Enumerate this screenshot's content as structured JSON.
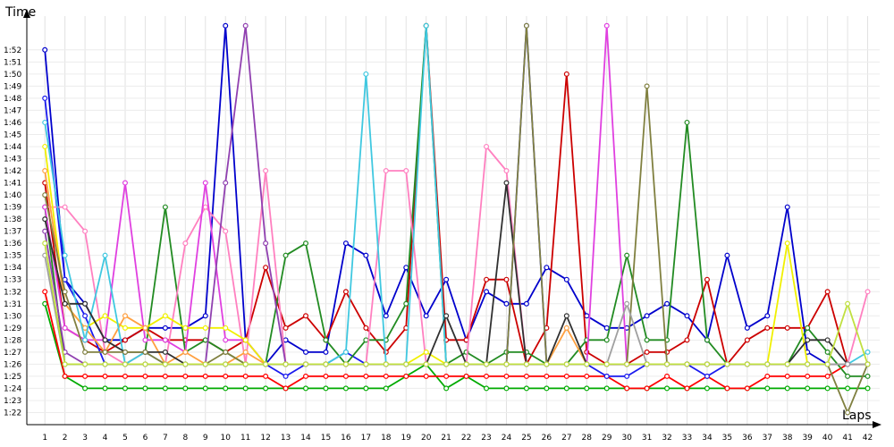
{
  "chart_data": {
    "type": "line",
    "xlabel": "Laps",
    "ylabel": "Time",
    "x": [
      1,
      2,
      3,
      4,
      5,
      6,
      7,
      8,
      9,
      10,
      11,
      12,
      13,
      14,
      15,
      16,
      17,
      18,
      19,
      20,
      21,
      22,
      23,
      24,
      25,
      26,
      27,
      28,
      29,
      30,
      31,
      32,
      33,
      34,
      35,
      36,
      37,
      38,
      39,
      40,
      41,
      42
    ],
    "xlim": [
      0.1,
      42.6
    ],
    "ylim": [
      81,
      114.5
    ],
    "y_ticks": [
      82,
      83,
      84,
      85,
      86,
      87,
      88,
      89,
      90,
      91,
      92,
      93,
      94,
      95,
      96,
      97,
      98,
      99,
      100,
      101,
      102,
      103,
      104,
      105,
      106,
      107,
      108,
      109,
      110,
      111,
      112
    ],
    "y_tick_labels": [
      "1:22",
      "1:23",
      "1:24",
      "1:25",
      "1:26",
      "1:27",
      "1:28",
      "1:29",
      "1:30",
      "1:31",
      "1:32",
      "1:33",
      "1:34",
      "1:35",
      "1:36",
      "1:37",
      "1:38",
      "1:39",
      "1:40",
      "1:41",
      "1:42",
      "1:43",
      "1:44",
      "1:45",
      "1:46",
      "1:47",
      "1:48",
      "1:49",
      "1:50",
      "1:51",
      "1:52"
    ],
    "grid": true,
    "series": [
      {
        "color": "#0000cc",
        "values": [
          112,
          93,
          91,
          88,
          88,
          89,
          89,
          89,
          90,
          114,
          88,
          86,
          88,
          87,
          87,
          96,
          95,
          90,
          94,
          90,
          93,
          88,
          92,
          91,
          91,
          94,
          93,
          90,
          89,
          89,
          90,
          91,
          90,
          88,
          95,
          89,
          90,
          99,
          87,
          86,
          86,
          86
        ]
      },
      {
        "color": "#00aa00",
        "values": [
          91,
          85,
          84,
          84,
          84,
          84,
          84,
          84,
          84,
          84,
          84,
          84,
          84,
          84,
          84,
          84,
          84,
          84,
          85,
          86,
          84,
          85,
          84,
          84,
          84,
          84,
          84,
          84,
          84,
          84,
          84,
          84,
          84,
          84,
          84,
          84,
          84,
          84,
          84,
          84,
          84,
          84
        ]
      },
      {
        "color": "#ff0000",
        "values": [
          92,
          85,
          85,
          85,
          85,
          85,
          85,
          85,
          85,
          85,
          85,
          85,
          84,
          85,
          85,
          85,
          85,
          85,
          85,
          85,
          85,
          85,
          85,
          85,
          85,
          85,
          85,
          85,
          85,
          84,
          84,
          85,
          84,
          85,
          84,
          84,
          85,
          85,
          85,
          85,
          86,
          86
        ]
      },
      {
        "color": "#cc0000",
        "values": [
          101,
          89,
          88,
          87,
          88,
          89,
          88,
          88,
          88,
          87,
          88,
          94,
          89,
          90,
          88,
          92,
          89,
          87,
          89,
          114,
          88,
          88,
          93,
          93,
          86,
          89,
          110,
          87,
          86,
          86,
          87,
          87,
          88,
          93,
          86,
          88,
          89,
          89,
          89,
          92,
          86,
          86
        ]
      },
      {
        "color": "#1a1aee",
        "values": [
          108,
          93,
          90,
          86,
          86,
          86,
          86,
          86,
          86,
          86,
          86,
          86,
          85,
          86,
          86,
          87,
          86,
          86,
          86,
          86,
          86,
          86,
          86,
          86,
          114,
          86,
          86,
          86,
          85,
          85,
          86,
          86,
          86,
          85,
          86,
          86,
          86,
          86,
          86,
          86,
          86,
          86
        ]
      },
      {
        "color": "#228b22",
        "values": [
          99,
          86,
          86,
          86,
          86,
          87,
          99,
          87,
          88,
          87,
          86,
          86,
          95,
          96,
          88,
          86,
          88,
          88,
          91,
          114,
          86,
          87,
          86,
          87,
          87,
          86,
          86,
          88,
          88,
          95,
          88,
          88,
          106,
          88,
          86,
          86,
          86,
          86,
          89,
          87,
          85,
          85
        ]
      },
      {
        "color": "#ff80c0",
        "values": [
          99,
          99,
          97,
          87,
          86,
          87,
          86,
          96,
          99,
          97,
          86,
          102,
          86,
          86,
          86,
          86,
          86,
          102,
          102,
          86,
          86,
          86,
          104,
          102,
          86,
          86,
          86,
          86,
          86,
          86,
          86,
          86,
          86,
          86,
          86,
          86,
          86,
          86,
          86,
          86,
          86,
          92
        ]
      },
      {
        "color": "#e040e0",
        "values": [
          99,
          89,
          88,
          88,
          101,
          88,
          88,
          87,
          101,
          88,
          88,
          86,
          86,
          86,
          86,
          86,
          86,
          86,
          86,
          86,
          86,
          86,
          86,
          86,
          86,
          86,
          86,
          86,
          114,
          86,
          86,
          86,
          86,
          86,
          86,
          86,
          86,
          86,
          86,
          86,
          86,
          86
        ]
      },
      {
        "color": "#f0f000",
        "values": [
          104,
          91,
          89,
          90,
          89,
          89,
          90,
          89,
          89,
          89,
          88,
          86,
          86,
          86,
          86,
          86,
          86,
          86,
          86,
          87,
          86,
          86,
          86,
          86,
          86,
          86,
          86,
          86,
          86,
          86,
          86,
          86,
          86,
          86,
          86,
          86,
          86,
          96,
          86,
          86,
          86,
          86
        ]
      },
      {
        "color": "#ffa040",
        "values": [
          102,
          91,
          89,
          87,
          90,
          89,
          86,
          87,
          86,
          86,
          87,
          86,
          86,
          86,
          86,
          86,
          86,
          86,
          86,
          86,
          86,
          86,
          86,
          86,
          86,
          86,
          89,
          86,
          86,
          86,
          86,
          86,
          86,
          86,
          86,
          86,
          86,
          86,
          86,
          86,
          86,
          86
        ]
      },
      {
        "color": "#40c8e0",
        "values": [
          106,
          95,
          88,
          95,
          86,
          87,
          86,
          86,
          86,
          86,
          86,
          86,
          86,
          86,
          86,
          87,
          110,
          86,
          86,
          114,
          86,
          86,
          86,
          86,
          86,
          86,
          86,
          86,
          86,
          86,
          86,
          86,
          86,
          86,
          86,
          86,
          86,
          86,
          86,
          86,
          86,
          87
        ]
      },
      {
        "color": "#303030",
        "values": [
          98,
          91,
          91,
          88,
          87,
          87,
          87,
          86,
          86,
          86,
          86,
          86,
          86,
          86,
          86,
          86,
          86,
          86,
          86,
          86,
          90,
          86,
          86,
          101,
          86,
          86,
          90,
          86,
          86,
          86,
          86,
          86,
          86,
          86,
          86,
          86,
          86,
          86,
          88,
          88,
          86,
          86
        ]
      },
      {
        "color": "#808040",
        "values": [
          100,
          92,
          87,
          87,
          87,
          87,
          86,
          86,
          86,
          87,
          86,
          86,
          86,
          86,
          86,
          86,
          86,
          86,
          86,
          86,
          86,
          86,
          86,
          86,
          114,
          86,
          86,
          86,
          86,
          86,
          109,
          86,
          86,
          86,
          86,
          86,
          86,
          86,
          86,
          86,
          82,
          86
        ]
      },
      {
        "color": "#9040b0",
        "values": [
          97,
          87,
          86,
          86,
          86,
          86,
          86,
          86,
          86,
          101,
          114,
          96,
          86,
          86,
          86,
          86,
          86,
          86,
          86,
          86,
          86,
          86,
          86,
          86,
          86,
          86,
          86,
          86,
          86,
          86,
          86,
          86,
          86,
          86,
          86,
          86,
          86,
          86,
          86,
          86,
          86,
          86
        ]
      },
      {
        "color": "#a0a0a0",
        "values": [
          95,
          86,
          86,
          86,
          86,
          86,
          86,
          86,
          86,
          86,
          86,
          86,
          86,
          86,
          86,
          86,
          86,
          86,
          86,
          86,
          86,
          86,
          86,
          86,
          86,
          86,
          86,
          86,
          86,
          91,
          86,
          86,
          86,
          86,
          86,
          86,
          86,
          86,
          86,
          86,
          86,
          86
        ]
      },
      {
        "color": "#c0e040",
        "values": [
          96,
          86,
          86,
          86,
          86,
          86,
          86,
          86,
          86,
          86,
          86,
          86,
          86,
          86,
          86,
          86,
          86,
          86,
          86,
          86,
          86,
          86,
          86,
          86,
          86,
          86,
          86,
          86,
          86,
          86,
          86,
          86,
          86,
          86,
          86,
          86,
          86,
          86,
          86,
          86,
          91,
          86
        ]
      }
    ]
  }
}
